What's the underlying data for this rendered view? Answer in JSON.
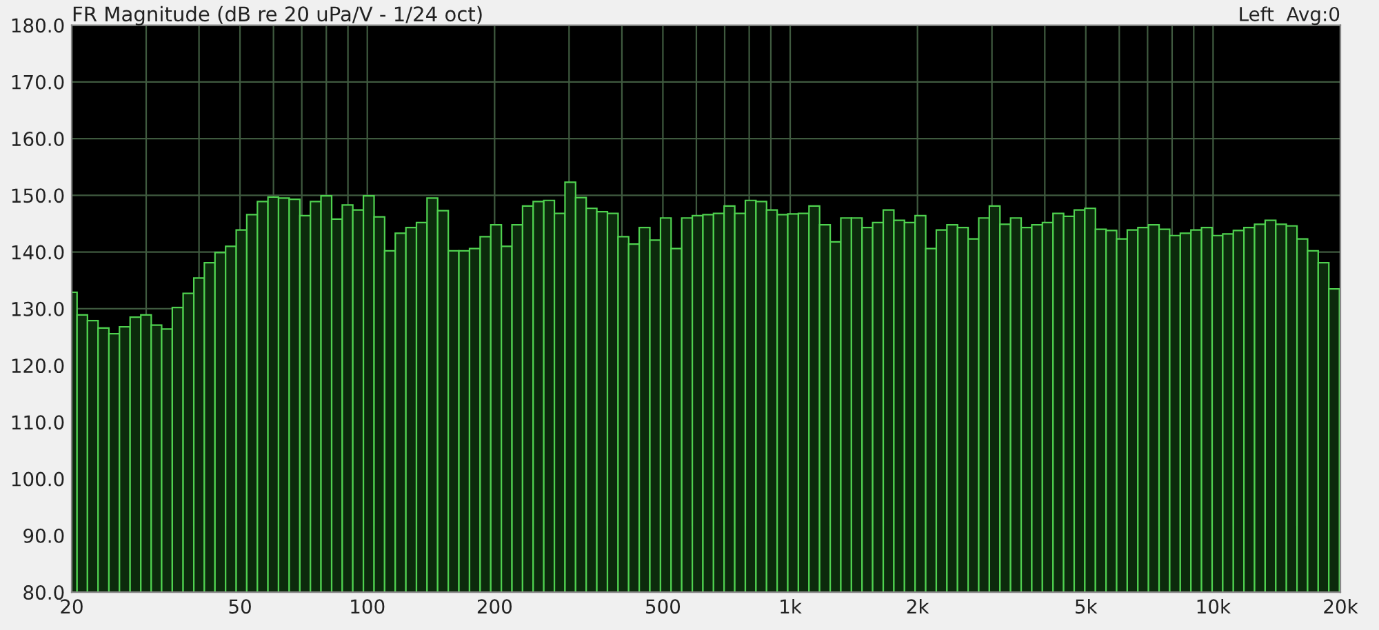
{
  "chart_data": {
    "type": "bar",
    "title": "FR Magnitude (dB re 20 uPa/V - 1/24 oct)",
    "annotations": [
      "Left  Avg:0"
    ],
    "x": [
      20,
      21.2,
      22.4,
      23.8,
      25.2,
      26.7,
      28.3,
      30,
      31.7,
      33.6,
      35.6,
      37.8,
      40,
      42.4,
      44.9,
      47.6,
      50.4,
      53.4,
      56.6,
      59.9,
      63.5,
      67.3,
      71.3,
      75.5,
      80,
      84.8,
      89.8,
      95.1,
      100.8,
      106.8,
      113.1,
      119.9,
      127,
      134.5,
      142.5,
      151,
      160,
      169.5,
      179.6,
      190.3,
      201.6,
      213.6,
      226.3,
      239.7,
      254,
      269.1,
      285.1,
      302,
      320,
      339,
      359.2,
      380.6,
      403.2,
      427.1,
      452.5,
      479.5,
      508,
      538.2,
      570.2,
      604.1,
      640,
      678,
      718.4,
      761.1,
      806.3,
      854.3,
      905.1,
      958.9,
      1015.9,
      1076.3,
      1140.3,
      1208.1,
      1280,
      1356.1,
      1436.8,
      1522.2,
      1612.7,
      1708.6,
      1810.2,
      1917.9,
      2031.9,
      2152.7,
      2280.7,
      2416.3,
      2560,
      2712.2,
      2873.5,
      3044.4,
      3225.4,
      3417.2,
      3620.4,
      3835.7,
      4063.8,
      4305.4,
      4561.4,
      4832.6,
      5120,
      5424.5,
      5747,
      6088.8,
      6450.8,
      6834.4,
      7240.8,
      7671.4,
      8127.5,
      8610.8,
      9122.8,
      9665.3,
      10240,
      10848.9,
      11494,
      12177.5,
      12901.6,
      13668.8,
      14481.5,
      15342.6,
      16255,
      17221.6,
      18245.6,
      19330.6
    ],
    "series": [
      {
        "color": "#4fd14f",
        "values": [
          132.9,
          128.9,
          127.9,
          126.6,
          125.6,
          126.8,
          128.5,
          128.9,
          127.1,
          126.4,
          130.2,
          132.7,
          135.4,
          138.1,
          139.9,
          141,
          143.9,
          146.6,
          148.9,
          149.7,
          149.5,
          149.3,
          146.4,
          148.9,
          149.9,
          145.8,
          148.3,
          147.4,
          149.9,
          146.2,
          140.2,
          143.3,
          144.3,
          145.2,
          149.5,
          147.3,
          140.2,
          140.2,
          140.6,
          142.7,
          144.8,
          141,
          144.8,
          148.1,
          148.9,
          149.1,
          146.8,
          152.3,
          149.6,
          147.7,
          147.1,
          146.8,
          142.7,
          141.4,
          144.3,
          142.1,
          146,
          140.6,
          146,
          146.4,
          146.6,
          146.8,
          148.1,
          146.8,
          149.1,
          148.9,
          147.4,
          146.6,
          146.7,
          146.8,
          148.1,
          144.8,
          141.8,
          146,
          146,
          144.3,
          145.2,
          147.4,
          145.6,
          145.2,
          146.4,
          140.6,
          143.9,
          144.8,
          144.3,
          142.3,
          146,
          148.1,
          144.9,
          146,
          144.3,
          144.8,
          145.2,
          146.8,
          146.3,
          147.4,
          147.7,
          144,
          143.8,
          142.3,
          143.9,
          144.3,
          144.8,
          144,
          142.9,
          143.3,
          143.9,
          144.3,
          142.9,
          143.2,
          143.8,
          144.3,
          144.9,
          145.6,
          144.9,
          144.6,
          142.3,
          140.2,
          138.1,
          133.5
        ]
      }
    ],
    "log": "x",
    "xlim": [
      20,
      20000
    ],
    "ylim": [
      80,
      180
    ],
    "xticks": [
      20,
      {
        "value": 30,
        "label": null
      },
      {
        "value": 40,
        "label": null
      },
      50,
      {
        "value": 60,
        "label": null
      },
      {
        "value": 70,
        "label": null
      },
      {
        "value": 80,
        "label": null
      },
      {
        "value": 90,
        "label": null
      },
      100,
      200,
      {
        "value": 300,
        "label": null
      },
      {
        "value": 400,
        "label": null
      },
      500,
      {
        "value": 600,
        "label": null
      },
      {
        "value": 700,
        "label": null
      },
      {
        "value": 800,
        "label": null
      },
      {
        "value": 900,
        "label": null
      },
      {
        "value": 1000,
        "label": "1k"
      },
      {
        "value": 2000,
        "label": "2k"
      },
      {
        "value": 3000,
        "label": null
      },
      {
        "value": 4000,
        "label": null
      },
      {
        "value": 5000,
        "label": "5k"
      },
      {
        "value": 6000,
        "label": null
      },
      {
        "value": 7000,
        "label": null
      },
      {
        "value": 8000,
        "label": null
      },
      {
        "value": 9000,
        "label": null
      },
      {
        "value": 10000,
        "label": "10k"
      },
      {
        "value": 20000,
        "label": "20k"
      }
    ],
    "yticks": [
      {
        "value": 80,
        "label": "80.0"
      },
      {
        "value": 90,
        "label": "90.0"
      },
      {
        "value": 100,
        "label": "100.0"
      },
      {
        "value": 110,
        "label": "110.0"
      },
      {
        "value": 120,
        "label": "120.0"
      },
      {
        "value": 130,
        "label": "130.0"
      },
      {
        "value": 140,
        "label": "140.0"
      },
      {
        "value": 150,
        "label": "150.0"
      },
      {
        "value": 160,
        "label": "160.0"
      },
      {
        "value": 170,
        "label": "170.0"
      },
      {
        "value": 180,
        "label": "180.0"
      }
    ],
    "grid": true
  }
}
